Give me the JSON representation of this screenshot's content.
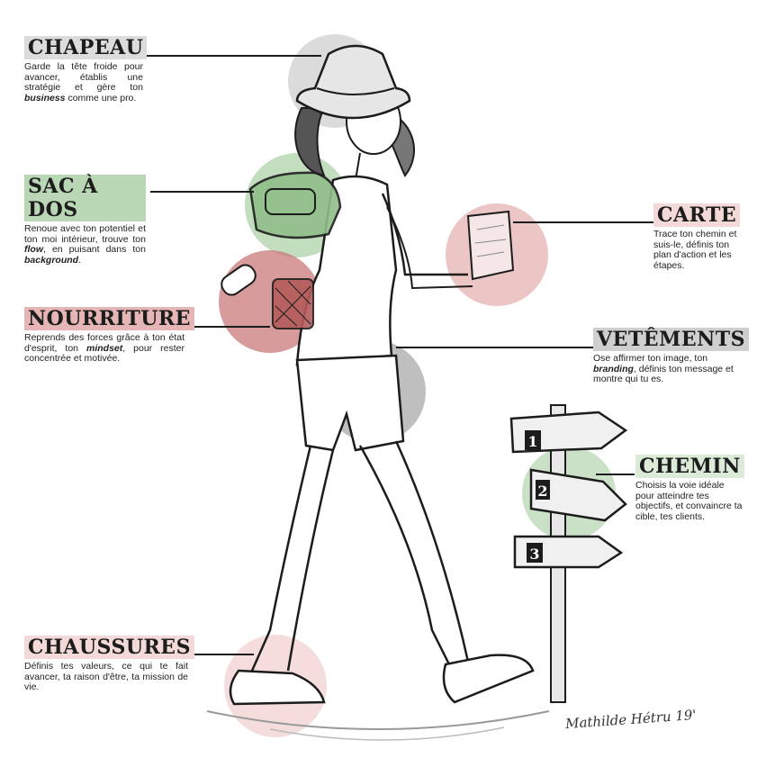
{
  "colors": {
    "grey": "#cfcfcf",
    "green": "#b9d7b4",
    "red": "#e5b6b5",
    "pink": "#f3d9d8",
    "dark_red": "#c97a7a",
    "ink": "#1c1c1c"
  },
  "labels": {
    "chapeau": {
      "title": "CHAPEAU",
      "desc_before": "Garde la tête froide pour avancer, établis une stratégie et gère ton ",
      "desc_em": "business",
      "desc_after": " comme une pro."
    },
    "sac": {
      "title": "SAC À DOS",
      "desc_before": "Renoue avec ton potentiel et ton moi intérieur, trouve ton ",
      "desc_em": "flow",
      "desc_mid": ", en puisant dans ton ",
      "desc_em2": "background",
      "desc_after": "."
    },
    "nourriture": {
      "title": "NOURRITURE",
      "desc_before": "Reprends des forces grâce à ton état d'esprit, ton ",
      "desc_em": "mindset",
      "desc_after": ", pour rester concentrée et motivée."
    },
    "chaussures": {
      "title": "CHAUSSURES",
      "desc": "Définis tes valeurs, ce qui te fait avancer, ta raison d'être, ta mission de vie."
    },
    "carte": {
      "title": "CARTE",
      "desc": "Trace ton chemin et suis-le, définis ton plan d'action et les étapes."
    },
    "vetements": {
      "title": "VETÊMENTS",
      "desc_before": "Ose affirmer ton image, ton ",
      "desc_em": "branding",
      "desc_after": ", définis ton message et montre qui tu es."
    },
    "chemin": {
      "title": "CHEMIN",
      "desc": "Choisis la voie idéale pour atteindre tes objectifs, et convaincre ta cible, tes clients."
    }
  },
  "signposts": [
    "1",
    "2",
    "3"
  ],
  "signature": "Mathilde Hétru 19'"
}
